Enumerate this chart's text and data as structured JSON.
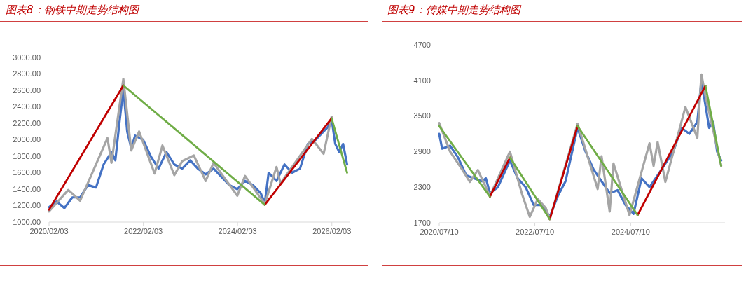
{
  "chart_data": [
    {
      "type": "line",
      "title": "图表8：钢铁中期走势结构图",
      "xlim": [
        "2020-02-03",
        "2026-06-20"
      ],
      "xticks": [
        {
          "value": "2020-02-03",
          "label": "2020/02/03"
        },
        {
          "value": "2022-02-03",
          "label": "2022/02/03"
        },
        {
          "value": "2024-02-03",
          "label": "2024/02/03"
        },
        {
          "value": "2026-02-03",
          "label": "2026/02/03"
        }
      ],
      "ylim": [
        1000,
        3000
      ],
      "yticks": [
        {
          "value": 1000,
          "label": "1000.00"
        },
        {
          "value": 1200,
          "label": "1200.00"
        },
        {
          "value": 1400,
          "label": "1400.00"
        },
        {
          "value": 1600,
          "label": "1600.00"
        },
        {
          "value": 1800,
          "label": "1800.00"
        },
        {
          "value": 2000,
          "label": "2000.00"
        },
        {
          "value": 2200,
          "label": "2200.00"
        },
        {
          "value": 2400,
          "label": "2400.00"
        },
        {
          "value": 2600,
          "label": "2600.00"
        },
        {
          "value": 2800,
          "label": "2800.00"
        },
        {
          "value": 3000,
          "label": "3000.00"
        }
      ],
      "grid": false,
      "marker": "none",
      "line_style": "solid",
      "series": [
        {
          "color": "#4472c4",
          "x": [
            "2020-02-03",
            "2020-04",
            "2020-06",
            "2020-08",
            "2020-10",
            "2020-12",
            "2021-02",
            "2021-04",
            "2021-06",
            "2021-07",
            "2021-08",
            "2021-09",
            "2021-10",
            "2021-11",
            "2021-12",
            "2022-02",
            "2022-04",
            "2022-06",
            "2022-08",
            "2022-10",
            "2022-12",
            "2023-02",
            "2023-04",
            "2023-06",
            "2023-08",
            "2023-10",
            "2023-12",
            "2024-02",
            "2024-04",
            "2024-06",
            "2024-08",
            "2024-09",
            "2024-10",
            "2024-12",
            "2025-02",
            "2025-04",
            "2025-06",
            "2025-08",
            "2025-10",
            "2025-12",
            "2026-01",
            "2026-02",
            "2026-03",
            "2026-04",
            "2026-05",
            "2026-06"
          ],
          "values": [
            1180,
            1250,
            1170,
            1300,
            1300,
            1450,
            1420,
            1700,
            1850,
            1750,
            2200,
            2620,
            2100,
            1900,
            2050,
            2000,
            1800,
            1650,
            1850,
            1700,
            1650,
            1750,
            1650,
            1580,
            1650,
            1550,
            1450,
            1400,
            1500,
            1450,
            1350,
            1230,
            1600,
            1500,
            1700,
            1600,
            1650,
            1950,
            2000,
            2100,
            2150,
            2250,
            1950,
            1850,
            1950,
            1700
          ]
        },
        {
          "color": "#a5a5a5",
          "x": [
            "2020-02-03",
            "2020-07",
            "2020-10",
            "2021-05",
            "2021-06",
            "2021-09",
            "2021-11",
            "2022-01",
            "2022-05",
            "2022-07",
            "2022-10",
            "2022-12",
            "2023-03",
            "2023-06",
            "2023-08",
            "2024-02",
            "2024-04",
            "2024-09",
            "2024-12",
            "2025-01",
            "2025-09",
            "2025-12",
            "2026-02"
          ],
          "values": [
            1130,
            1390,
            1260,
            2020,
            1720,
            2740,
            1870,
            2100,
            1590,
            1930,
            1570,
            1740,
            1810,
            1500,
            1720,
            1320,
            1560,
            1220,
            1670,
            1470,
            2010,
            1830,
            2280
          ]
        },
        {
          "color": "#c00000",
          "x": [
            "2020-02-03",
            "2021-09",
            "2023-06",
            "2024-09",
            "2026-02"
          ],
          "values": [
            1150,
            2660,
            null,
            1210,
            2260
          ]
        },
        {
          "color": "#70ad47",
          "x": [
            "2021-09",
            "2024-09",
            "2025-06",
            "2026-02",
            "2026-06"
          ],
          "values": [
            2660,
            1210,
            null,
            2260,
            1600
          ]
        }
      ]
    },
    {
      "type": "line",
      "title": "图表9：传媒中期走势结构图",
      "xlim": [
        "2020-07-10",
        "2026-06-30"
      ],
      "xticks": [
        {
          "value": "2020-07-10",
          "label": "2020/07/10"
        },
        {
          "value": "2022-07-10",
          "label": "2022/07/10"
        },
        {
          "value": "2024-07-10",
          "label": "2024/07/10"
        }
      ],
      "ylim": [
        1700,
        4700
      ],
      "yticks": [
        1700,
        2300,
        2900,
        3500,
        4100,
        4700
      ],
      "grid": false,
      "marker": "none",
      "line_style": "solid",
      "series": [
        {
          "color": "#4472c4",
          "x": [
            "2020-07-10",
            "2020-08",
            "2020-10",
            "2020-12",
            "2021-02",
            "2021-04",
            "2021-06",
            "2021-07",
            "2021-08",
            "2021-10",
            "2021-12",
            "2022-01",
            "2022-03",
            "2022-05",
            "2022-07",
            "2022-09",
            "2022-11",
            "2023-01",
            "2023-03",
            "2023-05",
            "2023-06",
            "2023-08",
            "2023-10",
            "2023-12",
            "2024-02",
            "2024-04",
            "2024-06",
            "2024-08",
            "2024-10",
            "2024-12",
            "2025-02",
            "2025-04",
            "2025-06",
            "2025-08",
            "2025-10",
            "2025-12",
            "2026-01",
            "2026-03",
            "2026-04",
            "2026-05",
            "2026-06"
          ],
          "values": [
            3200,
            2950,
            3000,
            2800,
            2500,
            2450,
            2400,
            2450,
            2200,
            2300,
            2600,
            2750,
            2450,
            2300,
            2000,
            2000,
            1800,
            2150,
            2400,
            3000,
            3300,
            2900,
            2600,
            2400,
            2200,
            2250,
            2000,
            1850,
            2450,
            2300,
            2500,
            2700,
            2900,
            3300,
            3200,
            3400,
            4100,
            3300,
            3400,
            2900,
            2750
          ]
        },
        {
          "color": "#a5a5a5",
          "x": [
            "2020-07-10",
            "2020-10",
            "2021-01",
            "2021-03",
            "2021-05",
            "2021-08",
            "2022-01",
            "2022-04",
            "2022-06",
            "2022-08",
            "2022-10",
            "2022-11",
            "2023-06",
            "2023-11",
            "2023-12",
            "2024-02",
            "2024-03",
            "2024-07",
            "2024-12",
            "2025-01",
            "2025-02",
            "2025-04",
            "2025-09",
            "2025-12",
            "2026-01",
            "2026-02",
            "2026-06"
          ],
          "values": [
            3380,
            2900,
            2600,
            2390,
            2590,
            2150,
            2900,
            2200,
            1800,
            2100,
            1950,
            1760,
            3370,
            2270,
            2820,
            1890,
            2700,
            1830,
            3040,
            2660,
            3060,
            2390,
            3650,
            3130,
            4200,
            3840,
            2660
          ]
        },
        {
          "color": "#c00000",
          "x": [
            "2021-08",
            "2022-01",
            "2022-06",
            "2022-11",
            "2023-06",
            "2024-01",
            "2024-09",
            "2026-02"
          ],
          "values": [
            2140,
            2800,
            null,
            1760,
            3330,
            null,
            1830,
            4010
          ]
        },
        {
          "color": "#70ad47",
          "x": [
            "2020-07-10",
            "2021-08",
            "2021-10",
            "2022-01",
            "2022-11",
            "2023-03",
            "2023-06",
            "2024-09",
            "2025-06",
            "2026-02",
            "2026-06"
          ],
          "values": [
            3330,
            2140,
            null,
            2800,
            1760,
            null,
            3330,
            1830,
            null,
            4010,
            2660
          ]
        }
      ]
    }
  ]
}
